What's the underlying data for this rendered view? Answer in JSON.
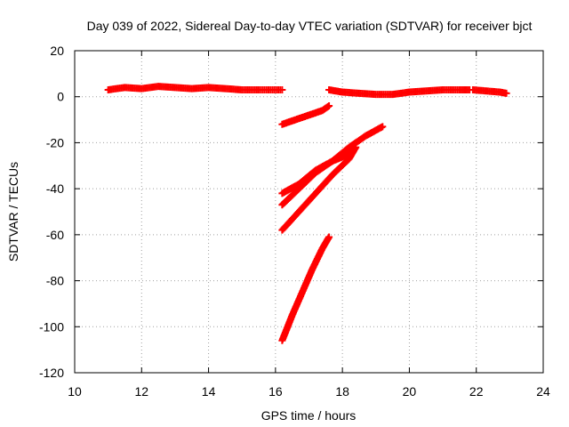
{
  "chart_data": {
    "type": "scatter",
    "title": "Day 039 of 2022, Sidereal Day-to-day VTEC variation (SDTVAR) for receiver bjct",
    "xlabel": "GPS time / hours",
    "ylabel": "SDTVAR / TECUs",
    "xlim": [
      10,
      24
    ],
    "ylim": [
      -120,
      20
    ],
    "xticks": [
      "10",
      "12",
      "14",
      "16",
      "18",
      "20",
      "22",
      "24"
    ],
    "yticks": [
      "20",
      "0",
      "-20",
      "-40",
      "-60",
      "-80",
      "-100",
      "-120"
    ],
    "grid": true,
    "marker": "plus",
    "color": "#ff0000",
    "series": [
      {
        "x": [
          11.0,
          11.5,
          12.0,
          12.5,
          13.0,
          13.5,
          14.0,
          14.5,
          15.0,
          15.5,
          16.2
        ],
        "y": [
          3,
          4,
          3.5,
          4.5,
          4,
          3.5,
          4,
          3.5,
          3,
          3,
          3
        ]
      },
      {
        "x": [
          16.2,
          16.6,
          17.0,
          17.4,
          17.6
        ],
        "y": [
          -12,
          -10,
          -8,
          -6,
          -4
        ]
      },
      {
        "x": [
          17.6,
          18.0,
          18.5,
          19.0,
          19.5,
          20.0,
          20.5,
          21.0,
          21.5,
          21.8
        ],
        "y": [
          3,
          2,
          1.5,
          1,
          1,
          2,
          2.5,
          3,
          3,
          3
        ]
      },
      {
        "x": [
          21.9,
          22.3,
          22.7,
          22.9
        ],
        "y": [
          3,
          2.5,
          2,
          1.5
        ]
      },
      {
        "x": [
          16.2,
          16.7,
          17.2,
          17.7,
          18.2,
          18.7,
          19.2
        ],
        "y": [
          -42,
          -38,
          -32,
          -28,
          -22,
          -17,
          -13
        ]
      },
      {
        "x": [
          16.2,
          16.7,
          17.2,
          17.7,
          18.2,
          18.3
        ],
        "y": [
          -47,
          -40,
          -33,
          -28,
          -25,
          -23
        ]
      },
      {
        "x": [
          16.2,
          16.7,
          17.2,
          17.7,
          18.2,
          18.4
        ],
        "y": [
          -58,
          -50,
          -42,
          -34,
          -27,
          -22
        ]
      },
      {
        "x": [
          16.2,
          16.5,
          16.8,
          17.1,
          17.4,
          17.6
        ],
        "y": [
          -106,
          -95,
          -85,
          -75,
          -66,
          -61
        ]
      }
    ]
  }
}
